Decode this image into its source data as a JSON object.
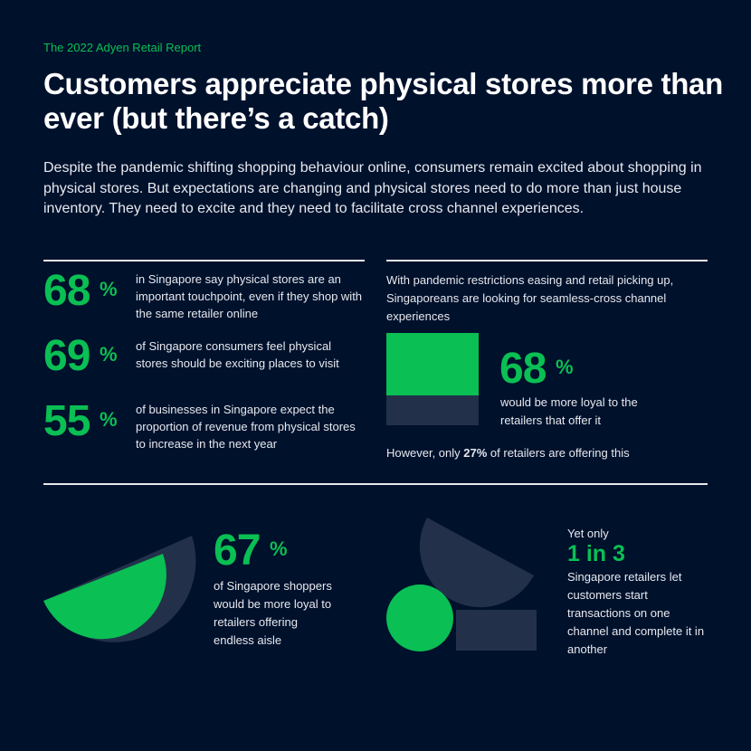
{
  "header": {
    "kicker": "The 2022 Adyen Retail Report",
    "title": "Customers appreciate physical stores more than ever (but there’s a catch)",
    "intro": "Despite the pandemic shifting shopping behaviour online, consumers remain excited about shopping in physical stores. But expectations are changing and physical stores need to do more than just house inventory. They need to excite and they need to facilitate cross channel experiences."
  },
  "left_stats": [
    {
      "value": "68",
      "unit": "%",
      "text": "in Singapore say physical stores are an important touchpoint, even if they shop with the same retailer online"
    },
    {
      "value": "69",
      "unit": "%",
      "text": "of Singapore consumers feel physical stores should be exciting places to visit"
    },
    {
      "value": "55",
      "unit": "%",
      "text": "of businesses in Singapore expect the proportion of revenue from physical stores to increase in the next year"
    }
  ],
  "cross_channel": {
    "intro": "With pandemic restrictions easing and retail picking up, Singaporeans are looking for seamless-cross channel experiences",
    "value": "68",
    "unit": "%",
    "text": "would be more loyal to the retailers that offer it",
    "fill_percent": 68,
    "footer_pre": "However, only ",
    "footer_bold": "27%",
    "footer_post": " of retailers are offering this"
  },
  "endless_aisle": {
    "value": "67",
    "unit": "%",
    "text": "of Singapore shoppers would be more loyal to retailers offering endless aisle"
  },
  "transactions": {
    "pre": "Yet only",
    "value": "1 in 3",
    "text": "Singapore retailers let customers start transactions on one channel and complete it in another"
  },
  "colors": {
    "background": "#00112c",
    "accent": "#0abf53",
    "shape": "#22304a"
  }
}
